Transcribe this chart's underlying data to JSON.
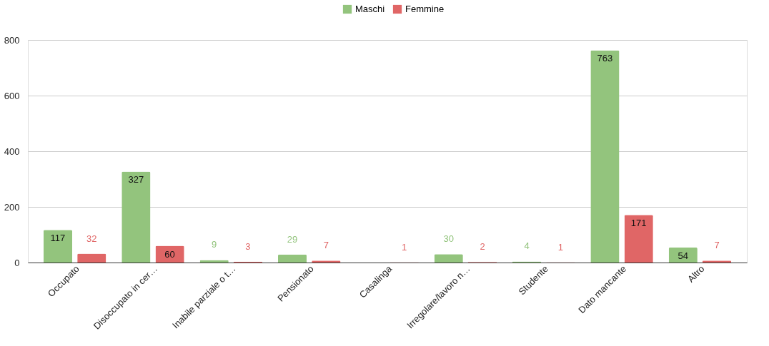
{
  "chart_data": {
    "type": "bar",
    "categories": [
      "Occupato",
      "Disoccupato in cer…",
      "Inabile parziale o t…",
      "Pensionato",
      "Casalinga",
      "Irregolare/lavoro n…",
      "Studente",
      "Dato mancante",
      "Altro"
    ],
    "series": [
      {
        "name": "Maschi",
        "color": "#93c47d",
        "values": [
          117,
          327,
          9,
          29,
          null,
          30,
          4,
          763,
          54
        ]
      },
      {
        "name": "Femmine",
        "color": "#e06666",
        "values": [
          32,
          60,
          3,
          7,
          1,
          2,
          1,
          171,
          7
        ]
      }
    ],
    "ylim": [
      0,
      800
    ],
    "yticks": [
      0,
      200,
      400,
      600,
      800
    ],
    "grid": "y",
    "legend": "top",
    "data_labels": true
  }
}
